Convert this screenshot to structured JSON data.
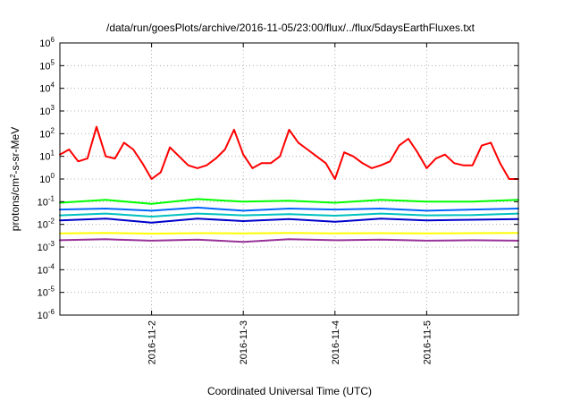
{
  "chart_data": {
    "type": "line",
    "title": "/data/run/goesPlots/archive/2016-11-05/23:00/flux/../flux/5daysEarthFluxes.txt",
    "xlabel": "Coordinated Universal Time (UTC)",
    "ylabel_main": "protons/cm",
    "ylabel_sup": "2",
    "ylabel_rest": "-s-sr-MeV",
    "yscale": "log",
    "ylim_exp": [
      -6,
      6
    ],
    "y_ticks": [
      {
        "base": "10",
        "exp": "-6",
        "value_exp": -6
      },
      {
        "base": "10",
        "exp": "-5",
        "value_exp": -5
      },
      {
        "base": "10",
        "exp": "-4",
        "value_exp": -4
      },
      {
        "base": "10",
        "exp": "-3",
        "value_exp": -3
      },
      {
        "base": "10",
        "exp": "-2",
        "value_exp": -2
      },
      {
        "base": "10",
        "exp": "-1",
        "value_exp": -1
      },
      {
        "base": "10",
        "exp": "0",
        "value_exp": 0
      },
      {
        "base": "10",
        "exp": "1",
        "value_exp": 1
      },
      {
        "base": "10",
        "exp": "2",
        "value_exp": 2
      },
      {
        "base": "10",
        "exp": "3",
        "value_exp": 3
      },
      {
        "base": "10",
        "exp": "4",
        "value_exp": 4
      },
      {
        "base": "10",
        "exp": "5",
        "value_exp": 5
      },
      {
        "base": "10",
        "exp": "6",
        "value_exp": 6
      }
    ],
    "xlim": [
      "2016-11-01T00:00",
      "2016-11-06T00:00"
    ],
    "x_ticks": [
      "2016-11-2",
      "2016-11-3",
      "2016-11-4",
      "2016-11-5"
    ],
    "x_tick_dates": [
      "2016-11-02T00:00",
      "2016-11-03T00:00",
      "2016-11-04T00:00",
      "2016-11-05T00:00"
    ],
    "grid": true,
    "series": [
      {
        "color": "#ff0000",
        "width": 2,
        "x": [
          "2016-11-01T00:00",
          "2016-11-01T02:24",
          "2016-11-01T04:48",
          "2016-11-01T07:12",
          "2016-11-01T09:36",
          "2016-11-01T12:00",
          "2016-11-01T14:24",
          "2016-11-01T16:48",
          "2016-11-01T19:12",
          "2016-11-01T21:36",
          "2016-11-02T00:00",
          "2016-11-02T02:24",
          "2016-11-02T04:48",
          "2016-11-02T07:12",
          "2016-11-02T09:36",
          "2016-11-02T12:00",
          "2016-11-02T14:24",
          "2016-11-02T16:48",
          "2016-11-02T19:12",
          "2016-11-02T21:36",
          "2016-11-03T00:00",
          "2016-11-03T02:24",
          "2016-11-03T04:48",
          "2016-11-03T07:12",
          "2016-11-03T09:36",
          "2016-11-03T12:00",
          "2016-11-03T14:24",
          "2016-11-03T16:48",
          "2016-11-03T19:12",
          "2016-11-03T21:36",
          "2016-11-04T00:00",
          "2016-11-04T02:24",
          "2016-11-04T04:48",
          "2016-11-04T07:12",
          "2016-11-04T09:36",
          "2016-11-04T12:00",
          "2016-11-04T14:24",
          "2016-11-04T16:48",
          "2016-11-04T19:12",
          "2016-11-04T21:36",
          "2016-11-05T00:00",
          "2016-11-05T02:24",
          "2016-11-05T04:48",
          "2016-11-05T07:12",
          "2016-11-05T09:36",
          "2016-11-05T12:00",
          "2016-11-05T14:24",
          "2016-11-05T16:48",
          "2016-11-05T19:12",
          "2016-11-05T21:36",
          "2016-11-05T23:59"
        ],
        "values": [
          12,
          20,
          6,
          8,
          200,
          10,
          8,
          40,
          20,
          5,
          1,
          2,
          25,
          10,
          4,
          3,
          4,
          8,
          20,
          150,
          12,
          3,
          5,
          5,
          10,
          150,
          40,
          20,
          10,
          5,
          1,
          15,
          10,
          5,
          3,
          4,
          6,
          30,
          60,
          15,
          3,
          8,
          12,
          5,
          4,
          4,
          30,
          40,
          5,
          1,
          1
        ]
      },
      {
        "color": "#00ff00",
        "width": 2,
        "x": [
          "2016-11-01T00:00",
          "2016-11-01T12:00",
          "2016-11-02T00:00",
          "2016-11-02T12:00",
          "2016-11-03T00:00",
          "2016-11-03T12:00",
          "2016-11-04T00:00",
          "2016-11-04T12:00",
          "2016-11-05T00:00",
          "2016-11-05T12:00",
          "2016-11-05T23:59"
        ],
        "values": [
          0.09,
          0.12,
          0.08,
          0.13,
          0.1,
          0.11,
          0.09,
          0.12,
          0.1,
          0.1,
          0.12
        ]
      },
      {
        "color": "#0066ff",
        "width": 2,
        "x": [
          "2016-11-01T00:00",
          "2016-11-01T12:00",
          "2016-11-02T00:00",
          "2016-11-02T12:00",
          "2016-11-03T00:00",
          "2016-11-03T12:00",
          "2016-11-04T00:00",
          "2016-11-04T12:00",
          "2016-11-05T00:00",
          "2016-11-05T12:00",
          "2016-11-05T23:59"
        ],
        "values": [
          0.045,
          0.05,
          0.04,
          0.055,
          0.04,
          0.05,
          0.045,
          0.05,
          0.04,
          0.045,
          0.05
        ]
      },
      {
        "color": "#00c0c0",
        "width": 2,
        "x": [
          "2016-11-01T00:00",
          "2016-11-01T12:00",
          "2016-11-02T00:00",
          "2016-11-02T12:00",
          "2016-11-03T00:00",
          "2016-11-03T12:00",
          "2016-11-04T00:00",
          "2016-11-04T12:00",
          "2016-11-05T00:00",
          "2016-11-05T12:00",
          "2016-11-05T23:59"
        ],
        "values": [
          0.025,
          0.03,
          0.022,
          0.03,
          0.025,
          0.028,
          0.024,
          0.03,
          0.025,
          0.026,
          0.03
        ]
      },
      {
        "color": "#0000cc",
        "width": 2,
        "x": [
          "2016-11-01T00:00",
          "2016-11-01T12:00",
          "2016-11-02T00:00",
          "2016-11-02T12:00",
          "2016-11-03T00:00",
          "2016-11-03T12:00",
          "2016-11-04T00:00",
          "2016-11-04T12:00",
          "2016-11-05T00:00",
          "2016-11-05T12:00",
          "2016-11-05T23:59"
        ],
        "values": [
          0.015,
          0.018,
          0.012,
          0.018,
          0.014,
          0.017,
          0.013,
          0.018,
          0.015,
          0.016,
          0.017
        ]
      },
      {
        "color": "#ffff00",
        "width": 2,
        "x": [
          "2016-11-01T00:00",
          "2016-11-01T12:00",
          "2016-11-02T00:00",
          "2016-11-02T12:00",
          "2016-11-03T00:00",
          "2016-11-03T12:00",
          "2016-11-04T00:00",
          "2016-11-04T12:00",
          "2016-11-05T00:00",
          "2016-11-05T12:00",
          "2016-11-05T23:59"
        ],
        "values": [
          0.004,
          0.0042,
          0.0039,
          0.0041,
          0.004,
          0.0042,
          0.004,
          0.0041,
          0.004,
          0.0041,
          0.0042
        ]
      },
      {
        "color": "#993399",
        "width": 2,
        "x": [
          "2016-11-01T00:00",
          "2016-11-01T12:00",
          "2016-11-02T00:00",
          "2016-11-02T12:00",
          "2016-11-03T00:00",
          "2016-11-03T12:00",
          "2016-11-04T00:00",
          "2016-11-04T12:00",
          "2016-11-05T00:00",
          "2016-11-05T12:00",
          "2016-11-05T23:59"
        ],
        "values": [
          0.002,
          0.0022,
          0.0019,
          0.0021,
          0.0017,
          0.0022,
          0.002,
          0.0021,
          0.0019,
          0.002,
          0.0019
        ]
      }
    ]
  }
}
